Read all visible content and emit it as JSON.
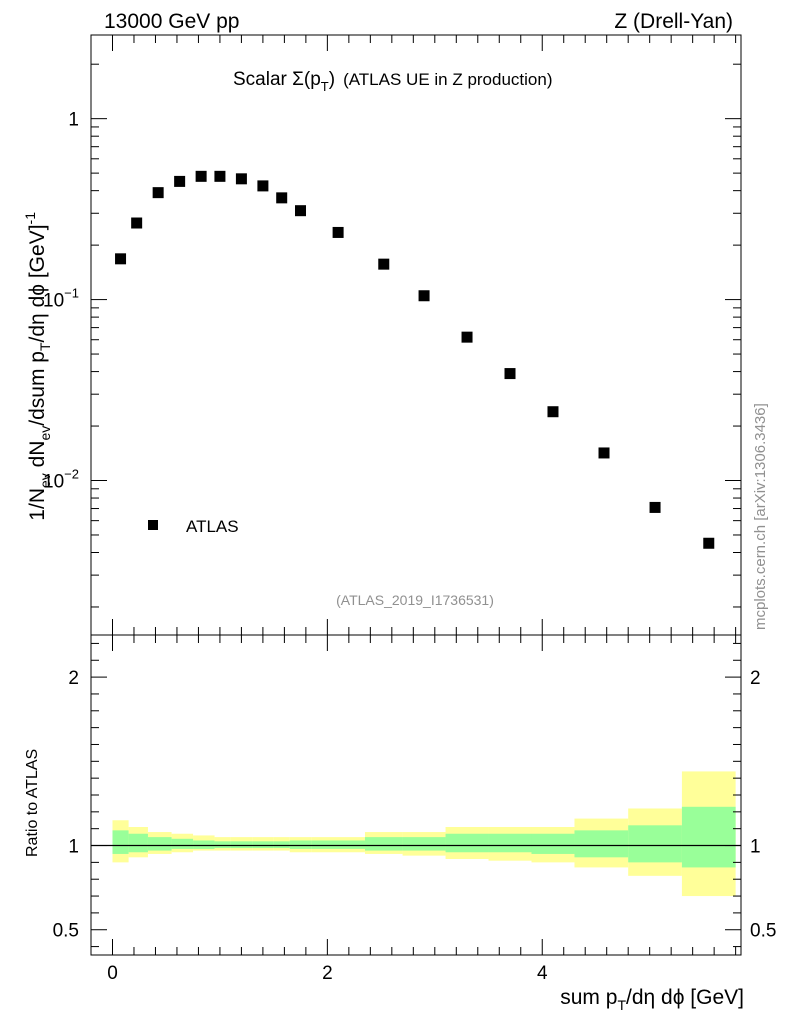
{
  "header": {
    "left": "13000 GeV pp",
    "right": "Z (Drell-Yan)"
  },
  "plot_title": {
    "main": "Scalar Σ(p",
    "sub": "T",
    "close": ")",
    "rest": "(ATLAS UE in Z production)"
  },
  "legend": {
    "label": "ATLAS"
  },
  "analysis_id": "(ATLAS_2019_I1736531)",
  "side_label": "mcplots.cern.ch [arXiv:1306.3436]",
  "ratio_ylabel": "Ratio to ATLAS",
  "colors": {
    "band_outer": "#ffff99",
    "band_inner": "#99ff99",
    "marker": "#000000"
  },
  "chart_data": [
    {
      "type": "scatter",
      "yscale": "log",
      "ylabel": "1/N_ev dN_ev/dsum p_T/dη dφ [GeV]^-1",
      "xlabel": "sum p_T/dη dφ [GeV]",
      "xlim": [
        -0.2,
        5.85
      ],
      "ylim": [
        0.0014,
        2.9
      ],
      "ytick_labels": [
        {
          "value": 1,
          "base": "1",
          "exp": ""
        },
        {
          "value": 0.1,
          "base": "10",
          "exp": "−1"
        },
        {
          "value": 0.01,
          "base": "10",
          "exp": "−2"
        }
      ],
      "series": [
        {
          "name": "ATLAS",
          "x": [
            0.075,
            0.225,
            0.425,
            0.625,
            0.825,
            1.0,
            1.2,
            1.4,
            1.575,
            1.75,
            2.1,
            2.525,
            2.9,
            3.3,
            3.7,
            4.1,
            4.575,
            5.05,
            5.55
          ],
          "y": [
            0.168,
            0.265,
            0.39,
            0.45,
            0.48,
            0.48,
            0.465,
            0.425,
            0.365,
            0.31,
            0.235,
            0.157,
            0.105,
            0.062,
            0.039,
            0.024,
            0.0142,
            0.0071,
            0.0045
          ]
        }
      ]
    },
    {
      "type": "area",
      "ylabel": "Ratio to ATLAS",
      "xlabel": "sum p_T/dη dφ [GeV]",
      "xlim": [
        -0.2,
        5.85
      ],
      "ylim": [
        0.35,
        2.25
      ],
      "yticks": [
        0.5,
        1,
        2
      ],
      "ytick_labels": [
        "0.5",
        "1",
        "2"
      ],
      "xticks": [
        0,
        2,
        4
      ],
      "xtick_labels": [
        "0",
        "2",
        "4"
      ],
      "reference_line": 1,
      "bins": [
        {
          "x0": 0.0,
          "x1": 0.15,
          "outer": [
            0.9,
            1.15
          ],
          "inner": [
            0.95,
            1.09
          ]
        },
        {
          "x0": 0.15,
          "x1": 0.33,
          "outer": [
            0.93,
            1.11
          ],
          "inner": [
            0.96,
            1.07
          ]
        },
        {
          "x0": 0.33,
          "x1": 0.55,
          "outer": [
            0.95,
            1.08
          ],
          "inner": [
            0.97,
            1.05
          ]
        },
        {
          "x0": 0.55,
          "x1": 0.75,
          "outer": [
            0.96,
            1.07
          ],
          "inner": [
            0.98,
            1.04
          ]
        },
        {
          "x0": 0.75,
          "x1": 0.95,
          "outer": [
            0.97,
            1.06
          ],
          "inner": [
            0.98,
            1.03
          ]
        },
        {
          "x0": 0.95,
          "x1": 1.1,
          "outer": [
            0.97,
            1.05
          ],
          "inner": [
            0.985,
            1.025
          ]
        },
        {
          "x0": 1.1,
          "x1": 1.3,
          "outer": [
            0.97,
            1.05
          ],
          "inner": [
            0.985,
            1.025
          ]
        },
        {
          "x0": 1.3,
          "x1": 1.5,
          "outer": [
            0.97,
            1.05
          ],
          "inner": [
            0.985,
            1.025
          ]
        },
        {
          "x0": 1.5,
          "x1": 1.65,
          "outer": [
            0.97,
            1.05
          ],
          "inner": [
            0.985,
            1.025
          ]
        },
        {
          "x0": 1.65,
          "x1": 1.85,
          "outer": [
            0.96,
            1.05
          ],
          "inner": [
            0.98,
            1.03
          ]
        },
        {
          "x0": 1.85,
          "x1": 2.35,
          "outer": [
            0.96,
            1.05
          ],
          "inner": [
            0.98,
            1.03
          ]
        },
        {
          "x0": 2.35,
          "x1": 2.7,
          "outer": [
            0.95,
            1.08
          ],
          "inner": [
            0.97,
            1.05
          ]
        },
        {
          "x0": 2.7,
          "x1": 3.1,
          "outer": [
            0.94,
            1.08
          ],
          "inner": [
            0.97,
            1.05
          ]
        },
        {
          "x0": 3.1,
          "x1": 3.5,
          "outer": [
            0.92,
            1.11
          ],
          "inner": [
            0.96,
            1.07
          ]
        },
        {
          "x0": 3.5,
          "x1": 3.9,
          "outer": [
            0.91,
            1.11
          ],
          "inner": [
            0.96,
            1.07
          ]
        },
        {
          "x0": 3.9,
          "x1": 4.3,
          "outer": [
            0.9,
            1.11
          ],
          "inner": [
            0.95,
            1.07
          ]
        },
        {
          "x0": 4.3,
          "x1": 4.8,
          "outer": [
            0.87,
            1.16
          ],
          "inner": [
            0.93,
            1.09
          ]
        },
        {
          "x0": 4.8,
          "x1": 5.3,
          "outer": [
            0.82,
            1.22
          ],
          "inner": [
            0.9,
            1.12
          ]
        },
        {
          "x0": 5.3,
          "x1": 5.8,
          "outer": [
            0.7,
            1.44
          ],
          "inner": [
            0.87,
            1.23
          ]
        }
      ]
    }
  ]
}
